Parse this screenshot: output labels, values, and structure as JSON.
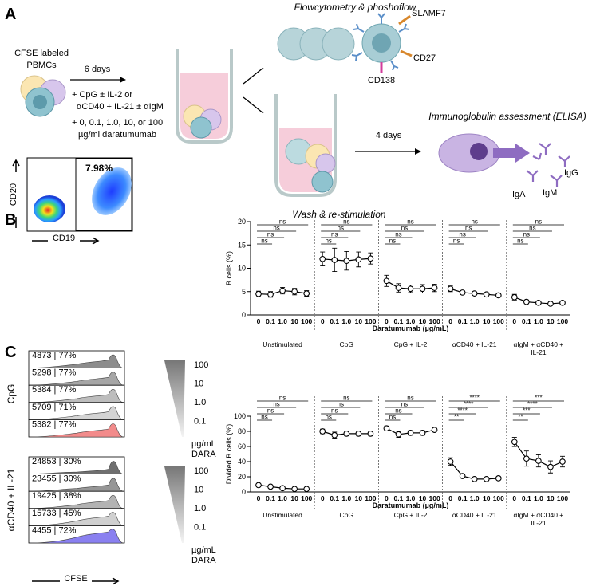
{
  "panel_a": {
    "label": "A",
    "top_title": "Flowcytometry & phoshoflow",
    "markers": [
      "SLAMF7",
      "CD27",
      "CD138"
    ],
    "source_line1": "CFSE labeled",
    "source_line2": "PBMCs",
    "culture_time": "6 days",
    "conditions": [
      "+ CpG ± IL-2 or",
      "αCD40 + IL-21 ± αIgM",
      "+ 0, 0.1, 1.0, 10, or 100",
      "µg/ml daratumumab"
    ],
    "restim_time": "4 days",
    "restim_caption": "Wash & re-stimulation",
    "elisa_title": "Immunoglobulin assessment (ELISA)",
    "isotypes": [
      "IgG",
      "IgA",
      "IgM"
    ]
  },
  "panel_b": {
    "label": "B",
    "gate_percent": "7.98%",
    "y_axis": "CD20",
    "x_axis": "CD19"
  },
  "panel_c": {
    "label": "C",
    "groups": [
      {
        "name": "CpG",
        "rows": [
          "4873 | 77%",
          "5298 | 77%",
          "5384 | 77%",
          "5709 | 71%",
          "5382 | 77%"
        ]
      },
      {
        "name": "αCD40 + IL-21",
        "rows": [
          "24853 | 30%",
          "23455 | 30%",
          "19425 | 38%",
          "15733 | 45%",
          "4455 | 72%"
        ]
      }
    ],
    "doses": [
      "100",
      "10",
      "1.0",
      "0.1"
    ],
    "unit": "µg/mL",
    "drug": "DARA",
    "x_axis": "CFSE"
  },
  "chart_data": [
    {
      "type": "line",
      "y_label": "B cells (%)",
      "x_label": "Daratumumab (µg/mL)",
      "categories": [
        "0",
        "0.1",
        "1.0",
        "10",
        "100"
      ],
      "ylim": [
        0,
        20
      ],
      "yticks": [
        0,
        5,
        10,
        15,
        20
      ],
      "color": "#000000",
      "series": [
        {
          "name": "Unstimulated",
          "values": [
            4.5,
            4.4,
            5.2,
            5.0,
            4.6
          ],
          "errors": [
            0.6,
            0.6,
            0.7,
            0.7,
            0.6
          ],
          "significance": [
            "ns",
            "ns",
            "ns",
            "ns"
          ]
        },
        {
          "name": "CpG",
          "values": [
            12.0,
            11.8,
            11.6,
            11.9,
            12.1
          ],
          "errors": [
            1.5,
            2.5,
            2.0,
            1.6,
            1.2
          ],
          "significance": [
            "ns",
            "ns",
            "ns",
            "ns"
          ]
        },
        {
          "name": "CpG + IL-2",
          "values": [
            7.3,
            5.8,
            5.6,
            5.6,
            5.8
          ],
          "errors": [
            1.2,
            0.9,
            0.8,
            0.9,
            0.8
          ],
          "significance": [
            "ns",
            "ns",
            "ns",
            "ns"
          ]
        },
        {
          "name": "αCD40 + IL-21",
          "values": [
            5.6,
            4.8,
            4.6,
            4.4,
            4.2
          ],
          "errors": [
            0.6,
            0.4,
            0.3,
            0.3,
            0.3
          ],
          "significance": [
            "ns",
            "ns",
            "ns",
            "ns"
          ]
        },
        {
          "name": "αIgM + αCD40 + IL-21",
          "values": [
            3.8,
            2.8,
            2.6,
            2.4,
            2.6
          ],
          "errors": [
            0.6,
            0.4,
            0.3,
            0.3,
            0.3
          ],
          "significance": [
            "ns",
            "ns",
            "ns",
            "ns"
          ]
        }
      ]
    },
    {
      "type": "line",
      "y_label": "Divided B cells (%)",
      "x_label": "Daratumumab (µg/mL)",
      "categories": [
        "0",
        "0.1",
        "1.0",
        "10",
        "100"
      ],
      "ylim": [
        0,
        100
      ],
      "yticks": [
        0,
        20,
        40,
        60,
        80,
        100
      ],
      "color": "#000000",
      "series": [
        {
          "name": "Unstimulated",
          "values": [
            9,
            7,
            5,
            4,
            4
          ],
          "errors": [
            1,
            1,
            1,
            1,
            1
          ],
          "significance": [
            "ns",
            "ns",
            "ns",
            "ns"
          ]
        },
        {
          "name": "CpG",
          "values": [
            80,
            75,
            77,
            77,
            77
          ],
          "errors": [
            3,
            4,
            3,
            3,
            3
          ],
          "significance": [
            "ns",
            "ns",
            "ns",
            "ns"
          ]
        },
        {
          "name": "CpG + IL-2",
          "values": [
            84,
            76,
            78,
            78,
            82
          ],
          "errors": [
            3,
            4,
            3,
            3,
            2
          ],
          "significance": [
            "ns",
            "ns",
            "ns",
            "ns"
          ]
        },
        {
          "name": "αCD40 + IL-21",
          "values": [
            40,
            21,
            17,
            17,
            18
          ],
          "errors": [
            5,
            2,
            1,
            1,
            1
          ],
          "significance": [
            "**",
            "****",
            "****",
            "****"
          ]
        },
        {
          "name": "αIgM + αCD40 + IL-21",
          "values": [
            66,
            44,
            41,
            33,
            40
          ],
          "errors": [
            6,
            10,
            8,
            8,
            7
          ],
          "significance": [
            "**",
            "***",
            "****",
            "***"
          ]
        }
      ]
    }
  ]
}
